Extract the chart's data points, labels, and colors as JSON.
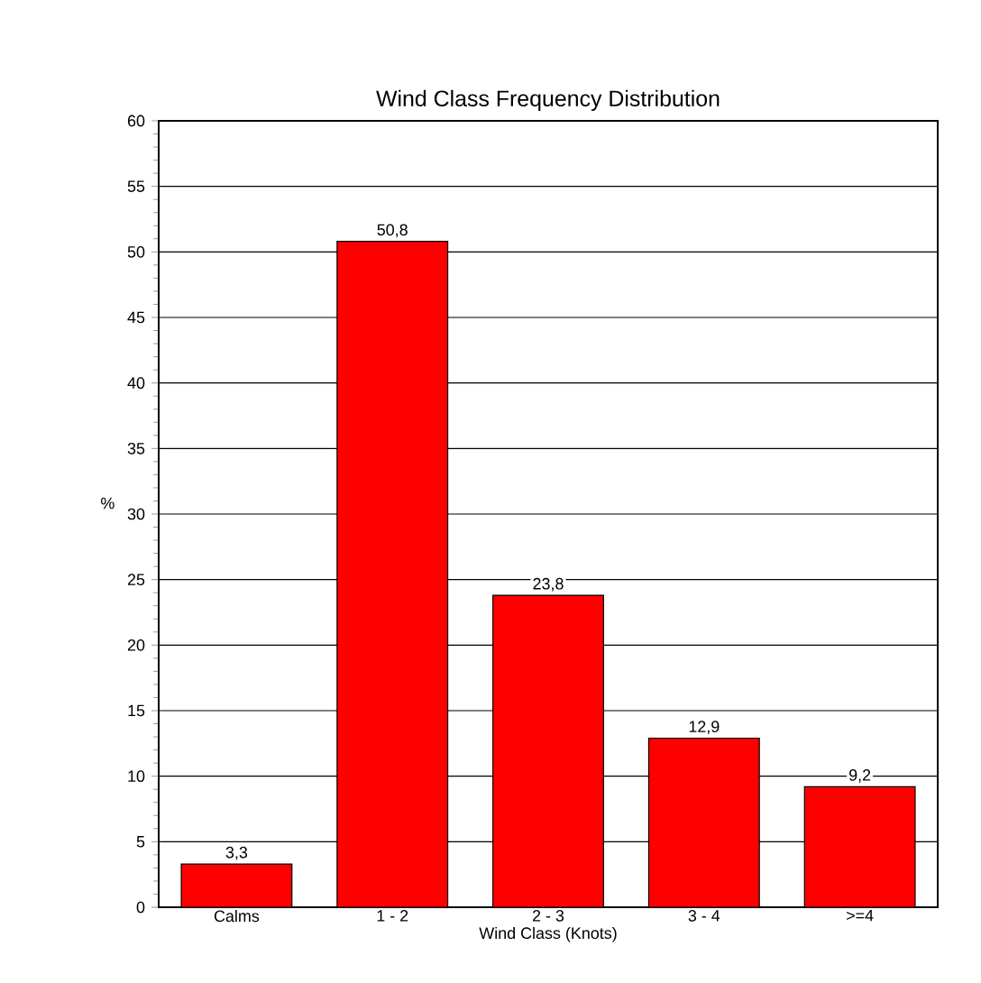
{
  "chart_data": {
    "type": "bar",
    "title": "Wind Class Frequency Distribution",
    "xlabel": "Wind Class (Knots)",
    "ylabel": "%",
    "categories": [
      "Calms",
      "1 - 2",
      "2 - 3",
      "3 - 4",
      ">=4"
    ],
    "values": [
      3.3,
      50.8,
      23.8,
      12.9,
      9.2
    ],
    "value_labels": [
      "3,3",
      "50,8",
      "23,8",
      "12,9",
      "9,2"
    ],
    "color": "#ff0000",
    "ylim": [
      0,
      60
    ],
    "yticks": [
      0,
      5,
      10,
      15,
      20,
      25,
      30,
      35,
      40,
      45,
      50,
      55,
      60
    ],
    "grid": "y"
  }
}
